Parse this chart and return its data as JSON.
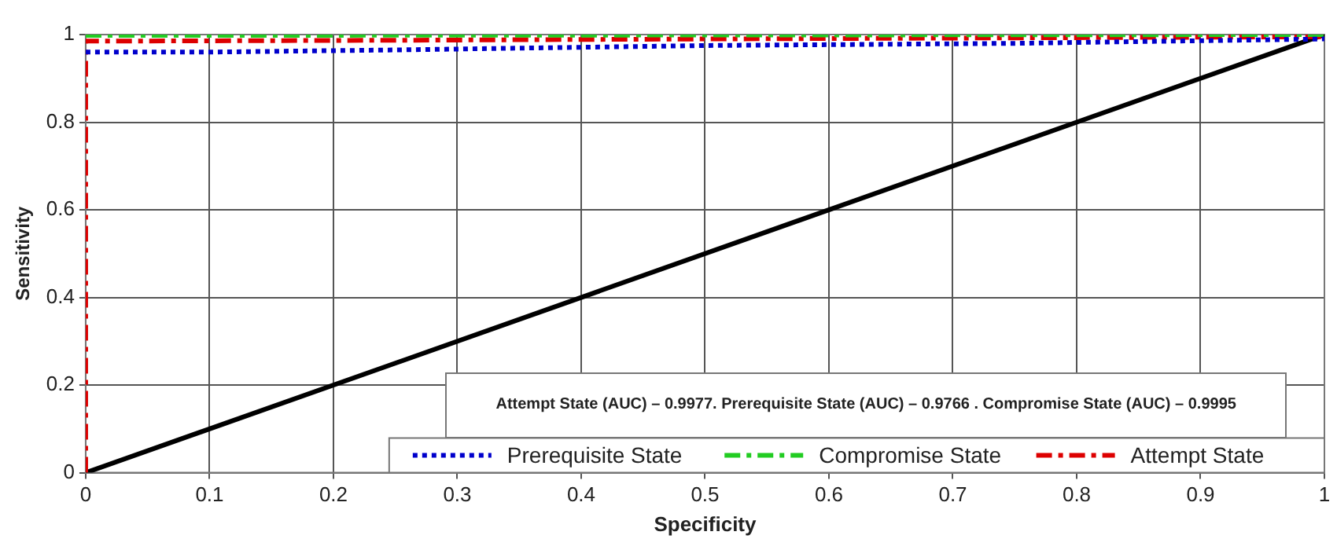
{
  "chart_data": {
    "type": "line",
    "xlabel": "Specificity",
    "ylabel": "Sensitivity",
    "xlim": [
      0,
      1
    ],
    "ylim": [
      0,
      1
    ],
    "xticks": [
      0,
      0.1,
      0.2,
      0.3,
      0.4,
      0.5,
      0.6,
      0.7,
      0.8,
      0.9,
      1
    ],
    "yticks": [
      0,
      0.2,
      0.4,
      0.6,
      0.8,
      1
    ],
    "grid": true,
    "legend": "bottom",
    "marker": "none",
    "annotations": [
      "Attempt State (AUC) – 0.9977. Prerequisite State (AUC) – 0.9766 . Compromise State (AUC) – 0.9995"
    ],
    "series": [
      {
        "name": "Prerequisite State",
        "color": "#0000cc",
        "line_style": "dotted",
        "x": [
          0,
          0.1,
          0.25,
          0.5,
          0.75,
          1
        ],
        "values": [
          0.96,
          0.96,
          0.965,
          0.975,
          0.98,
          0.99
        ]
      },
      {
        "name": "Compromise State",
        "color": "#22cc22",
        "line_style": "dashed",
        "x": [
          0,
          0.5,
          1
        ],
        "values": [
          0.998,
          0.999,
          1
        ]
      },
      {
        "name": "Attempt State",
        "color": "#dd0000",
        "line_style": "dashed",
        "x": [
          0,
          0,
          0.25,
          0.5,
          1
        ],
        "values": [
          0,
          0.985,
          0.987,
          0.99,
          0.995
        ]
      },
      {
        "color": "#000000",
        "line_style": "solid",
        "x": [
          0,
          1
        ],
        "values": [
          0,
          1
        ]
      }
    ]
  }
}
